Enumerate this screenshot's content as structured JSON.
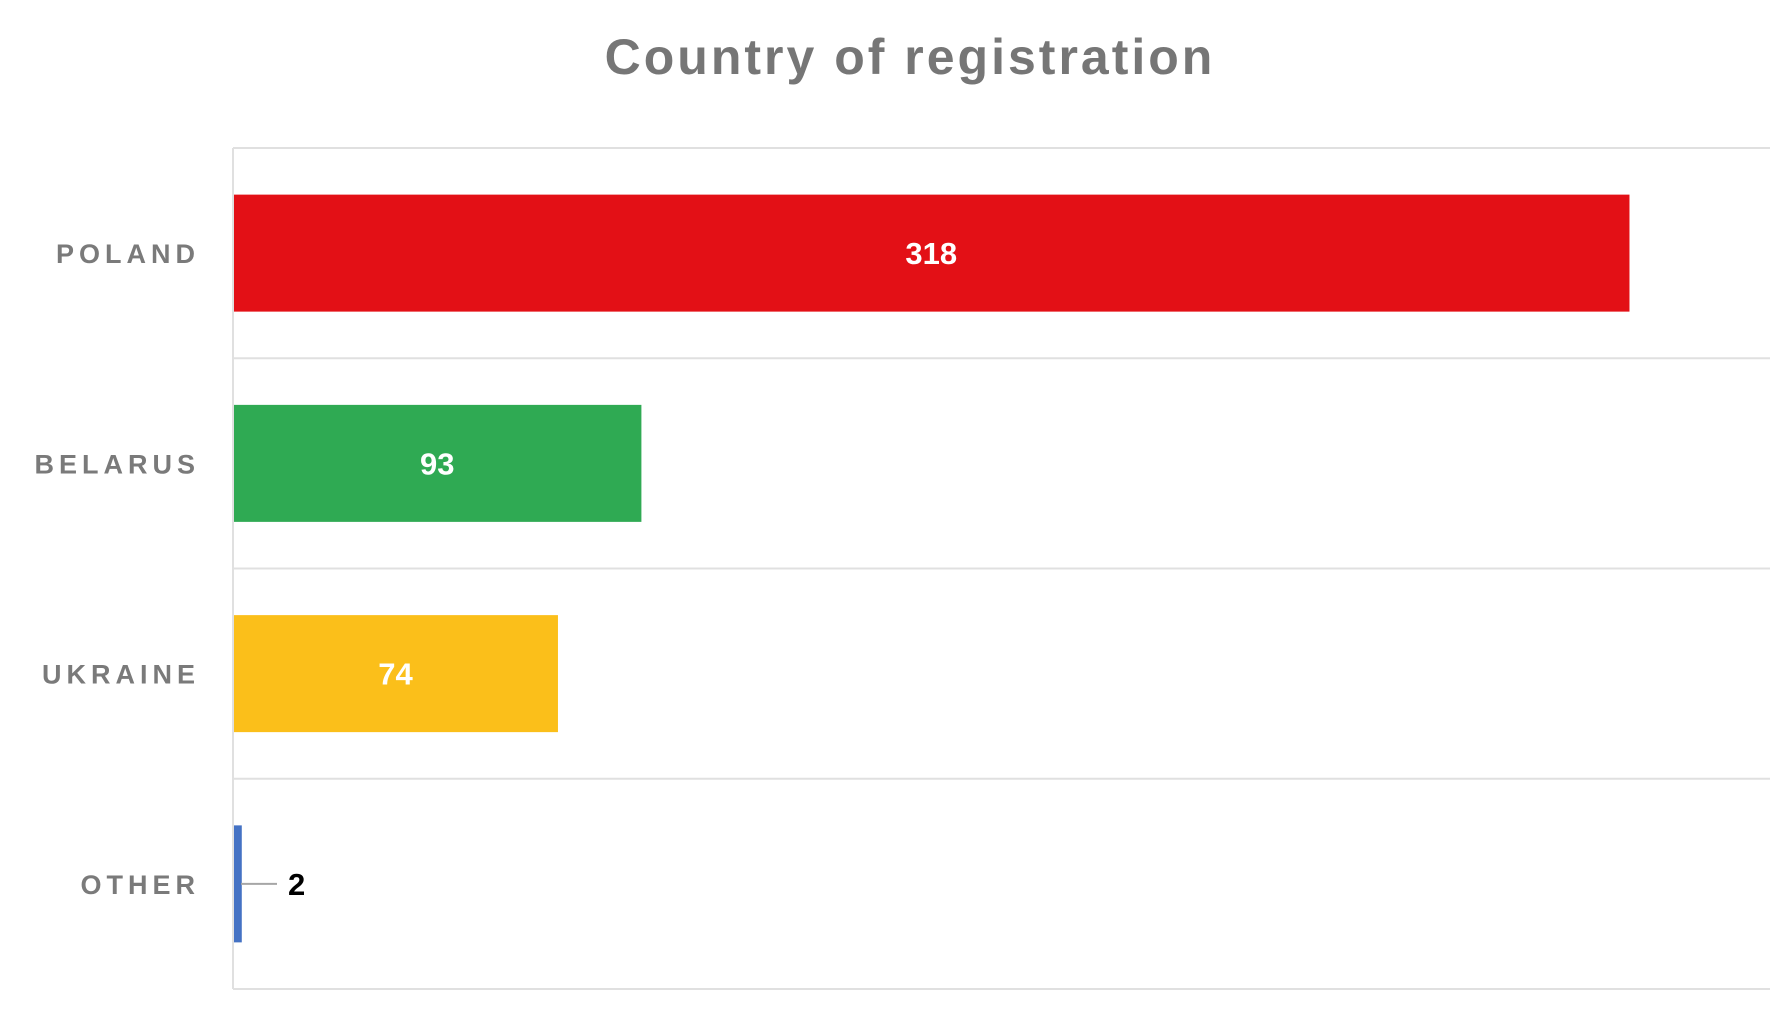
{
  "chart_data": {
    "type": "bar",
    "orientation": "horizontal",
    "title": "Country of registration",
    "categories": [
      "POLAND",
      "BELARUS",
      "UKRAINE",
      "OTHER"
    ],
    "values": [
      318,
      93,
      74,
      2
    ],
    "colors": [
      "#e31016",
      "#2faa53",
      "#fbbf1a",
      "#4472c4"
    ],
    "xlim": [
      0,
      350
    ],
    "grid": true,
    "data_labels": true,
    "xlabel": "",
    "ylabel": ""
  }
}
